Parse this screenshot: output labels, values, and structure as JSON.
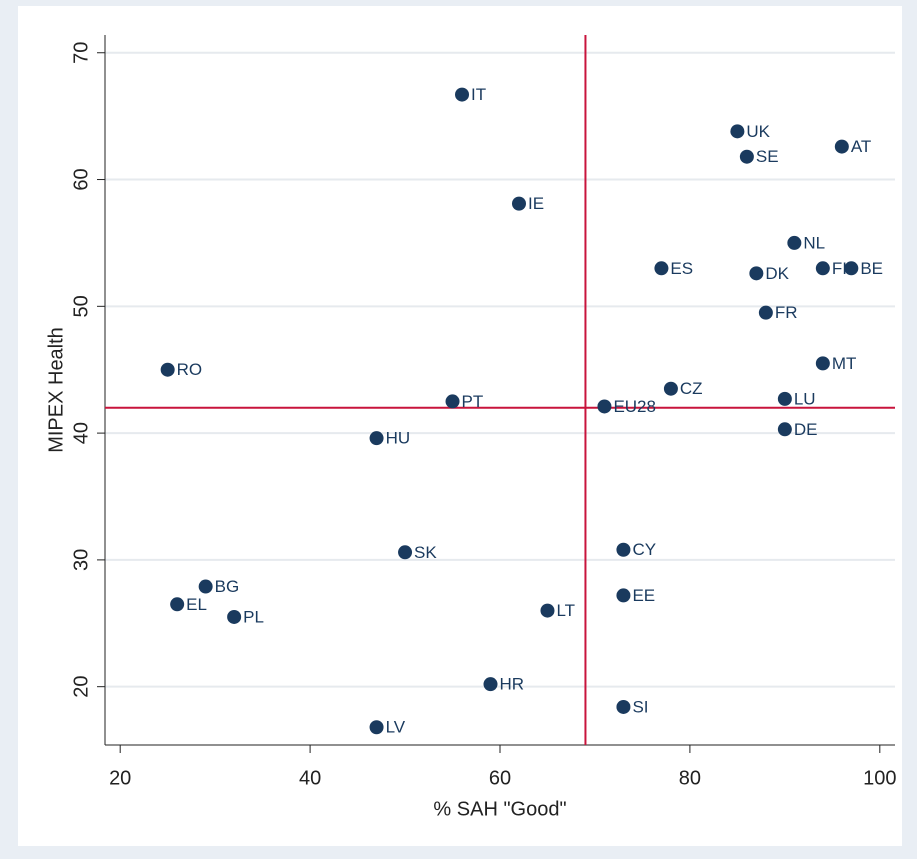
{
  "chart_data": {
    "type": "scatter",
    "xlabel": "% SAH \"Good\"",
    "ylabel": "MIPEX Health",
    "xlim": [
      18.4,
      101.6
    ],
    "xticks": [
      20,
      40,
      60,
      80,
      100
    ],
    "ylim": [
      15.4,
      71.4
    ],
    "yticks": [
      20,
      30,
      40,
      50,
      60,
      70
    ],
    "grid": true,
    "color": "#1a3a5e",
    "reference_lines": {
      "x": 69,
      "y": 42,
      "color": "#c8143c"
    },
    "point_labels": [
      "IT",
      "UK",
      "SE",
      "AT",
      "IE",
      "NL",
      "FI",
      "BE",
      "ES",
      "DK",
      "FR",
      "RO",
      "MT",
      "CZ",
      "LU",
      "PT",
      "EU28",
      "HU",
      "DE",
      "SK",
      "CY",
      "BG",
      "EE",
      "EL",
      "PL",
      "LT",
      "HR",
      "SI",
      "LV"
    ],
    "x": [
      56,
      85,
      86,
      96,
      62,
      91,
      94,
      97,
      77,
      87,
      88,
      25,
      94,
      78,
      90,
      55,
      71,
      47,
      90,
      50,
      73,
      29,
      73,
      26,
      32,
      65,
      59,
      73,
      47
    ],
    "values": [
      66.7,
      63.8,
      61.8,
      62.6,
      58.1,
      55,
      53,
      53,
      53,
      52.6,
      49.5,
      45,
      45.5,
      43.5,
      42.7,
      42.5,
      42.1,
      39.6,
      40.3,
      30.6,
      30.8,
      27.9,
      27.2,
      26.5,
      25.5,
      26,
      20.2,
      18.4,
      16.8
    ]
  }
}
